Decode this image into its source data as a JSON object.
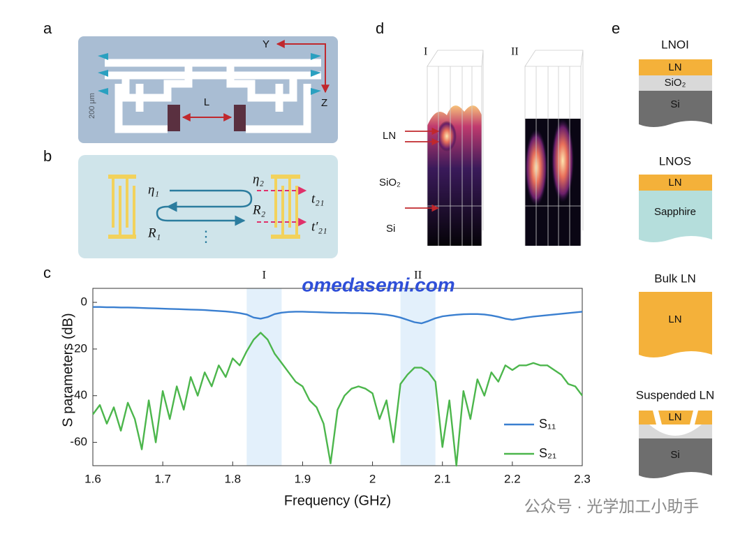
{
  "panels": {
    "a": {
      "label": "a",
      "scale_bar": "200 μm",
      "axis_y": "Y",
      "axis_z": "Z",
      "length": "L"
    },
    "b": {
      "label": "b",
      "eta1": "η₁",
      "eta2": "η₂",
      "r1": "R₁",
      "r2": "R₂",
      "t21": "t₂₁",
      "t21p": "t′₂₁",
      "more": "⋮"
    },
    "c": {
      "label": "c"
    },
    "d": {
      "label": "d",
      "mode1": "I",
      "mode2": "II",
      "ln": "LN",
      "sio2": "SiO₂",
      "si": "Si"
    },
    "e": {
      "label": "e",
      "stacks": [
        {
          "title": "LNOI",
          "layers": [
            "LN",
            "SiO₂",
            "Si"
          ]
        },
        {
          "title": "LNOS",
          "layers": [
            "LN",
            "Sapphire"
          ]
        },
        {
          "title": "Bulk LN",
          "layers": [
            "LN"
          ]
        },
        {
          "title": "Suspended LN",
          "layers": [
            "LN",
            "Si"
          ]
        }
      ]
    }
  },
  "watermarks": [
    "omedasemi.com",
    "公众号 · 光学加工小助手"
  ],
  "chart_data": {
    "type": "line",
    "xlabel": "Frequency (GHz)",
    "ylabel": "S parameters (dB)",
    "xlim": [
      1.6,
      2.3
    ],
    "xticks": [
      1.6,
      1.7,
      1.8,
      1.9,
      2,
      2.1,
      2.2,
      2.3
    ],
    "ylim": [
      -70,
      6
    ],
    "yticks": [
      0,
      -20,
      -40,
      -60
    ],
    "highlight_bands": [
      {
        "label": "I",
        "range": [
          1.82,
          1.87
        ]
      },
      {
        "label": "II",
        "range": [
          2.04,
          2.09
        ]
      }
    ],
    "legend": "lower right",
    "x": [
      1.6,
      1.61,
      1.62,
      1.63,
      1.64,
      1.65,
      1.66,
      1.67,
      1.68,
      1.69,
      1.7,
      1.71,
      1.72,
      1.73,
      1.74,
      1.75,
      1.76,
      1.77,
      1.78,
      1.79,
      1.8,
      1.81,
      1.82,
      1.83,
      1.84,
      1.85,
      1.86,
      1.87,
      1.88,
      1.89,
      1.9,
      1.91,
      1.92,
      1.93,
      1.94,
      1.95,
      1.96,
      1.97,
      1.98,
      1.99,
      2,
      2.01,
      2.02,
      2.03,
      2.04,
      2.05,
      2.06,
      2.07,
      2.08,
      2.09,
      2.1,
      2.11,
      2.12,
      2.13,
      2.14,
      2.15,
      2.16,
      2.17,
      2.18,
      2.19,
      2.2,
      2.21,
      2.22,
      2.23,
      2.24,
      2.25,
      2.26,
      2.27,
      2.28,
      2.29,
      2.3
    ],
    "series": [
      {
        "name": "S₁₁",
        "color": "#3a7fd0",
        "values": [
          -2,
          -2,
          -2.1,
          -2.1,
          -2.2,
          -2.2,
          -2.3,
          -2.4,
          -2.5,
          -2.6,
          -2.7,
          -2.8,
          -2.9,
          -3,
          -3.1,
          -3.2,
          -3.3,
          -3.5,
          -3.7,
          -3.9,
          -4.2,
          -4.6,
          -5.2,
          -6.5,
          -7,
          -6.3,
          -5,
          -4.4,
          -4.1,
          -4,
          -4,
          -4.1,
          -4.2,
          -4.3,
          -4.4,
          -4.5,
          -4.5,
          -4.6,
          -4.6,
          -4.7,
          -4.8,
          -5,
          -5.3,
          -5.8,
          -6.5,
          -7.5,
          -8.5,
          -9,
          -8,
          -6.8,
          -6,
          -5.6,
          -5.3,
          -5.1,
          -5,
          -5,
          -5.2,
          -5.6,
          -6.2,
          -7,
          -7.5,
          -7,
          -6.5,
          -6.1,
          -5.8,
          -5.5,
          -5.2,
          -4.9,
          -4.6,
          -4.3,
          -4
        ]
      },
      {
        "name": "S₂₁",
        "color": "#4cb64c",
        "values": [
          -48,
          -44,
          -52,
          -45,
          -55,
          -43,
          -50,
          -63,
          -42,
          -60,
          -38,
          -50,
          -36,
          -46,
          -32,
          -40,
          -30,
          -36,
          -27,
          -32,
          -24,
          -27,
          -21,
          -16,
          -13,
          -16,
          -22,
          -26,
          -30,
          -34,
          -36,
          -42,
          -45,
          -52,
          -69,
          -46,
          -40,
          -37,
          -36,
          -37,
          -39,
          -50,
          -42,
          -60,
          -35,
          -31,
          -28,
          -28,
          -30,
          -34,
          -62,
          -42,
          -70,
          -38,
          -50,
          -33,
          -40,
          -30,
          -34,
          -27,
          -29,
          -27,
          -27,
          -26,
          -27,
          -27,
          -29,
          -31,
          -35,
          -36,
          -40
        ]
      }
    ]
  }
}
